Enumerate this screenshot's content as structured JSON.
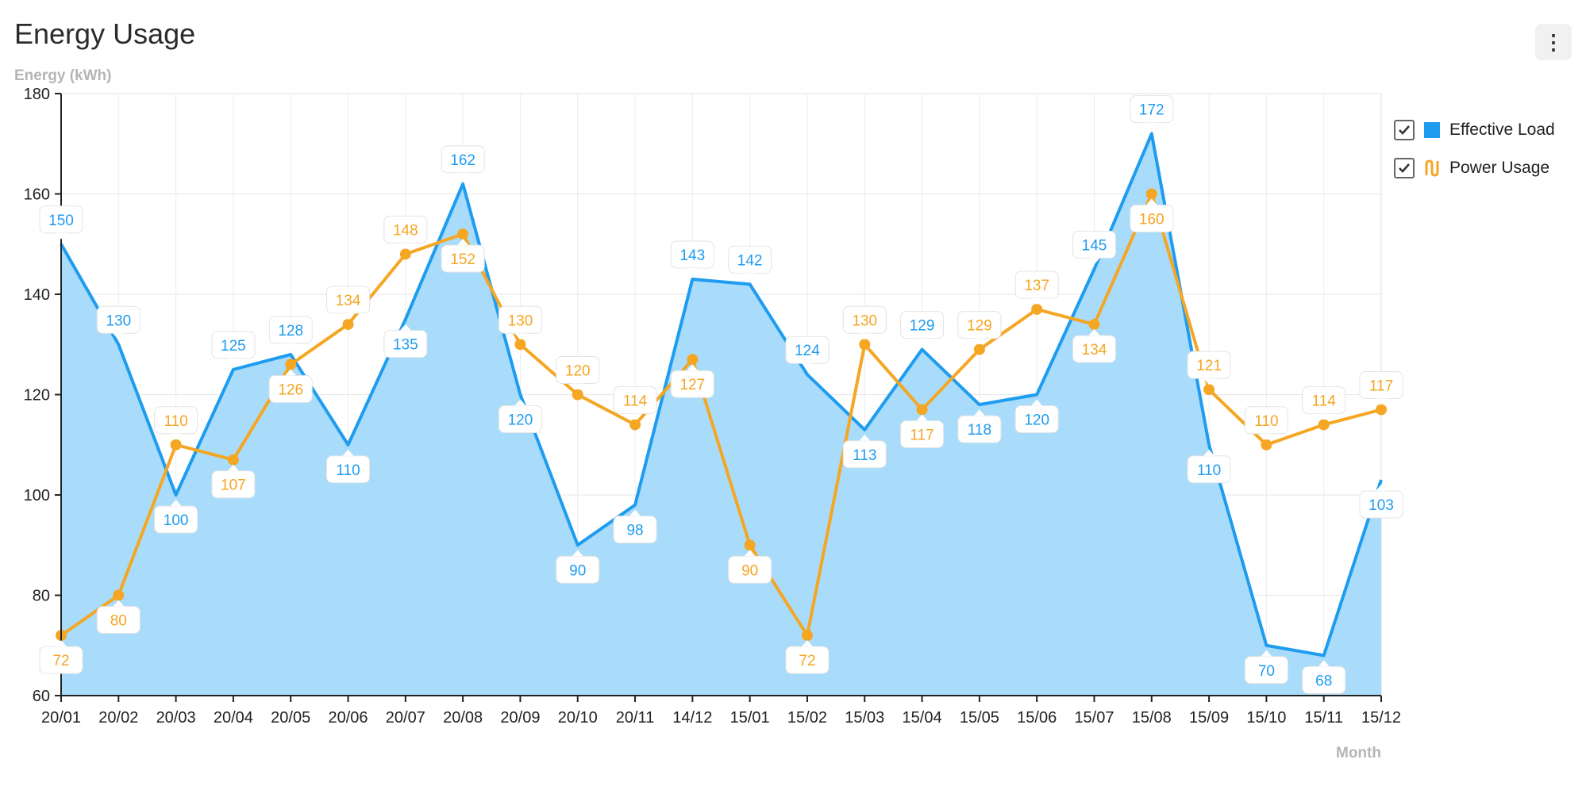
{
  "title": "Energy Usage",
  "menu": {
    "icon": "kebab-menu-icon",
    "label": "⋮"
  },
  "legend": {
    "items": [
      {
        "label": "Effective Load",
        "checked": true,
        "color": "#1e9cf0",
        "icon": "square-swatch-icon"
      },
      {
        "label": "Power Usage",
        "checked": true,
        "color": "#f5a623",
        "icon": "line-swatch-icon"
      }
    ]
  },
  "chart_data": {
    "type": "area",
    "title": "Energy Usage",
    "xlabel": "Month",
    "ylabel": "Energy (kWh)",
    "ylim": [
      60,
      180
    ],
    "yticks": [
      60,
      80,
      100,
      120,
      140,
      160,
      180
    ],
    "grid": true,
    "legend_position": "top-right",
    "categories": [
      "20/01",
      "20/02",
      "20/03",
      "20/04",
      "20/05",
      "20/06",
      "20/07",
      "20/08",
      "20/09",
      "20/10",
      "20/11",
      "14/12",
      "15/01",
      "15/02",
      "15/03",
      "15/04",
      "15/05",
      "15/06",
      "15/07",
      "15/08",
      "15/09",
      "15/10",
      "15/11",
      "15/12"
    ],
    "series": [
      {
        "name": "Effective Load",
        "type": "area",
        "color": "#1e9cf0",
        "fill": "#a9dcfa",
        "values": [
          150,
          130,
          100,
          125,
          128,
          110,
          135,
          162,
          120,
          90,
          98,
          143,
          142,
          124,
          113,
          129,
          118,
          120,
          145,
          172,
          110,
          70,
          68,
          103
        ]
      },
      {
        "name": "Power Usage",
        "type": "line",
        "color": "#f5a623",
        "values": [
          72,
          80,
          110,
          107,
          126,
          134,
          148,
          152,
          130,
          120,
          114,
          127,
          90,
          72,
          130,
          117,
          129,
          137,
          134,
          160,
          121,
          110,
          114,
          117
        ]
      }
    ]
  }
}
